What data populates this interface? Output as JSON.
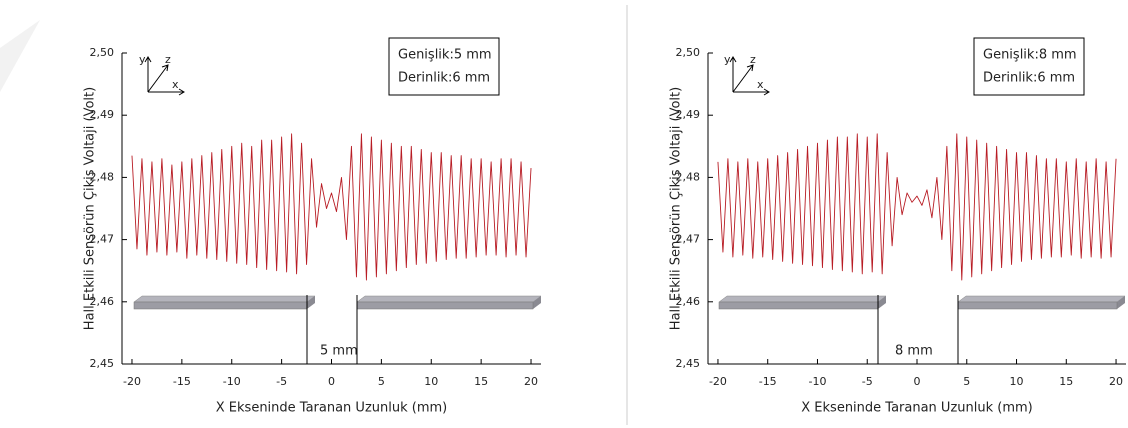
{
  "chart_data": [
    {
      "type": "line",
      "x": [
        -20,
        -19.5,
        -19,
        -18.5,
        -18,
        -17.5,
        -17,
        -16.5,
        -16,
        -15.5,
        -15,
        -14.5,
        -14,
        -13.5,
        -13,
        -12.5,
        -12,
        -11.5,
        -11,
        -10.5,
        -10,
        -9.5,
        -9,
        -8.5,
        -8,
        -7.5,
        -7,
        -6.5,
        -6,
        -5.5,
        -5,
        -4.5,
        -4,
        -3.5,
        -3,
        -2.5,
        -2,
        -1.5,
        -1,
        -0.5,
        0,
        0.5,
        1,
        1.5,
        2,
        2.5,
        3,
        3.5,
        4,
        4.5,
        5,
        5.5,
        6,
        6.5,
        7,
        7.5,
        8,
        8.5,
        9,
        9.5,
        10,
        10.5,
        11,
        11.5,
        12,
        12.5,
        13,
        13.5,
        14,
        14.5,
        15,
        15.5,
        16,
        16.5,
        17,
        17.5,
        18,
        18.5,
        19,
        19.5,
        20
      ],
      "values": [
        2.4835,
        2.4685,
        2.483,
        2.4675,
        2.4825,
        2.468,
        2.483,
        2.4675,
        2.482,
        2.468,
        2.4825,
        2.467,
        2.483,
        2.4675,
        2.4835,
        2.467,
        2.484,
        2.4668,
        2.4845,
        2.4665,
        2.485,
        2.4662,
        2.4855,
        2.466,
        2.485,
        2.4655,
        2.486,
        2.4652,
        2.486,
        2.465,
        2.4865,
        2.4648,
        2.487,
        2.4645,
        2.4855,
        2.466,
        2.483,
        2.472,
        2.479,
        2.475,
        2.4775,
        2.4745,
        2.48,
        2.47,
        2.485,
        2.464,
        2.487,
        2.4635,
        2.4865,
        2.464,
        2.486,
        2.4645,
        2.4855,
        2.465,
        2.485,
        2.4655,
        2.485,
        2.466,
        2.4845,
        2.4662,
        2.484,
        2.4665,
        2.484,
        2.4668,
        2.4835,
        2.467,
        2.4835,
        2.467,
        2.483,
        2.4672,
        2.483,
        2.4675,
        2.4825,
        2.4675,
        2.483,
        2.4672,
        2.483,
        2.4675,
        2.4825,
        2.4672,
        2.4815
      ],
      "color": "#b81c24",
      "xlim": [
        -21,
        21
      ],
      "ylim": [
        2.45,
        2.5
      ],
      "xticks": [
        -20,
        -15,
        -10,
        -5,
        0,
        5,
        10,
        15,
        20
      ],
      "yticks": [
        {
          "value": 2.45,
          "label": "2,45"
        },
        {
          "value": 2.46,
          "label": "2,46"
        },
        {
          "value": 2.47,
          "label": "2,47"
        },
        {
          "value": 2.48,
          "label": "2,48"
        },
        {
          "value": 2.49,
          "label": "2,49"
        },
        {
          "value": 2.5,
          "label": "2,50"
        }
      ],
      "x_label": "X Ekseninde Taranan Uzunluk (mm)",
      "y_label": "Hall Etkili Sensörün Çikis Voltaji (Volt)",
      "info_box": [
        "Genişlik:5 mm",
        "Derinlik:6 mm"
      ],
      "gap_label": "5 mm",
      "axes_icon": {
        "x": "x",
        "y": "y",
        "z": "z"
      }
    },
    {
      "type": "line",
      "x": [
        -20,
        -19.5,
        -19,
        -18.5,
        -18,
        -17.5,
        -17,
        -16.5,
        -16,
        -15.5,
        -15,
        -14.5,
        -14,
        -13.5,
        -13,
        -12.5,
        -12,
        -11.5,
        -11,
        -10.5,
        -10,
        -9.5,
        -9,
        -8.5,
        -8,
        -7.5,
        -7,
        -6.5,
        -6,
        -5.5,
        -5,
        -4.5,
        -4,
        -3.5,
        -3,
        -2.5,
        -2,
        -1.5,
        -1,
        -0.5,
        0,
        0.5,
        1,
        1.5,
        2,
        2.5,
        3,
        3.5,
        4,
        4.5,
        5,
        5.5,
        6,
        6.5,
        7,
        7.5,
        8,
        8.5,
        9,
        9.5,
        10,
        10.5,
        11,
        11.5,
        12,
        12.5,
        13,
        13.5,
        14,
        14.5,
        15,
        15.5,
        16,
        16.5,
        17,
        17.5,
        18,
        18.5,
        19,
        19.5,
        20
      ],
      "values": [
        2.4825,
        2.468,
        2.483,
        2.4672,
        2.4825,
        2.4675,
        2.483,
        2.467,
        2.4825,
        2.4672,
        2.483,
        2.4668,
        2.4835,
        2.4665,
        2.484,
        2.4662,
        2.4845,
        2.466,
        2.485,
        2.4658,
        2.4855,
        2.4655,
        2.486,
        2.4652,
        2.4865,
        2.465,
        2.4865,
        2.4648,
        2.487,
        2.4645,
        2.4865,
        2.4648,
        2.487,
        2.4645,
        2.484,
        2.469,
        2.48,
        2.474,
        2.4775,
        2.476,
        2.477,
        2.4755,
        2.478,
        2.4735,
        2.48,
        2.47,
        2.485,
        2.465,
        2.487,
        2.4635,
        2.4865,
        2.464,
        2.486,
        2.4645,
        2.4855,
        2.465,
        2.485,
        2.4655,
        2.4845,
        2.466,
        2.484,
        2.4665,
        2.484,
        2.4668,
        2.4835,
        2.467,
        2.483,
        2.4672,
        2.483,
        2.4672,
        2.4825,
        2.4675,
        2.483,
        2.467,
        2.4825,
        2.4672,
        2.483,
        2.467,
        2.4825,
        2.4672,
        2.483
      ],
      "color": "#b81c24",
      "xlim": [
        -21,
        21
      ],
      "ylim": [
        2.45,
        2.5
      ],
      "xticks": [
        -20,
        -15,
        -10,
        -5,
        0,
        5,
        10,
        15,
        20
      ],
      "yticks": [
        {
          "value": 2.45,
          "label": "2,45"
        },
        {
          "value": 2.46,
          "label": "2,46"
        },
        {
          "value": 2.47,
          "label": "2,47"
        },
        {
          "value": 2.48,
          "label": "2,48"
        },
        {
          "value": 2.49,
          "label": "2,49"
        },
        {
          "value": 2.5,
          "label": "2,50"
        }
      ],
      "x_label": "X Ekseninde Taranan Uzunluk (mm)",
      "y_label": "Hall Etkili Sensörün Çikis Voltaji (Volt)",
      "info_box": [
        "Genişlik:8 mm",
        "Derinlik:6 mm"
      ],
      "gap_label": "8 mm",
      "axes_icon": {
        "x": "x",
        "y": "y",
        "z": "z"
      }
    }
  ]
}
